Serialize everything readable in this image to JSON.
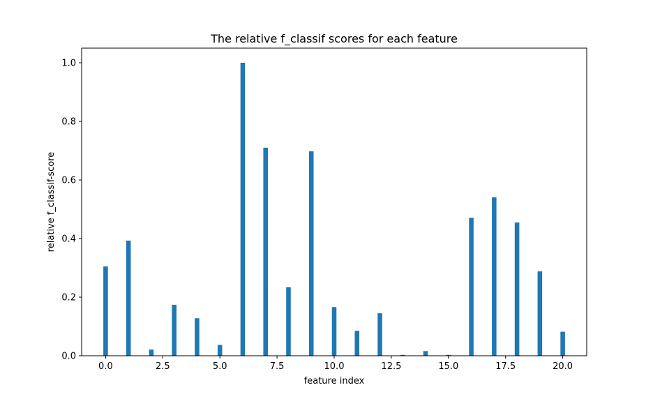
{
  "chart_data": {
    "type": "bar",
    "title": "The relative f_classif scores for each feature",
    "xlabel": "feature index",
    "ylabel": "relative f_classif-score",
    "x": [
      0,
      1,
      2,
      3,
      4,
      5,
      6,
      7,
      8,
      9,
      10,
      11,
      12,
      13,
      14,
      15,
      16,
      17,
      18,
      19,
      20
    ],
    "values": [
      0.305,
      0.393,
      0.021,
      0.174,
      0.128,
      0.037,
      1.0,
      0.71,
      0.234,
      0.698,
      0.166,
      0.085,
      0.145,
      0.003,
      0.016,
      0.003,
      0.471,
      0.541,
      0.455,
      0.288,
      0.082
    ],
    "xlim": [
      -1.05,
      21.05
    ],
    "ylim": [
      0,
      1.05
    ],
    "xticks": [
      0.0,
      2.5,
      5.0,
      7.5,
      10.0,
      12.5,
      15.0,
      17.5,
      20.0
    ],
    "xtick_labels": [
      "0.0",
      "2.5",
      "5.0",
      "7.5",
      "10.0",
      "12.5",
      "15.0",
      "17.5",
      "20.0"
    ],
    "yticks": [
      0.0,
      0.2,
      0.4,
      0.6,
      0.8,
      1.0
    ],
    "ytick_labels": [
      "0.0",
      "0.2",
      "0.4",
      "0.6",
      "0.8",
      "1.0"
    ],
    "bar_width": 0.2,
    "bar_color": "#1f77b4",
    "grid": false,
    "legend": false
  }
}
